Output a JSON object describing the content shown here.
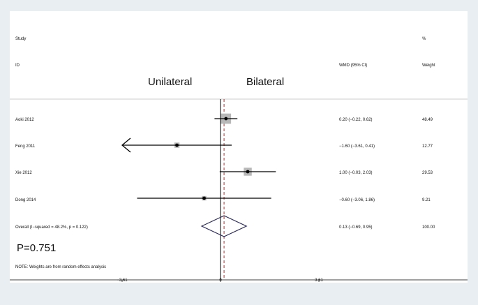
{
  "chart_data": {
    "type": "forest",
    "header": {
      "study_label": "Study",
      "id_label": "ID",
      "effect_label": "WMD (95% CI)",
      "pct_label": "%",
      "weight_label": "Weight"
    },
    "favours": {
      "left": "Unilateral",
      "right": "Bilateral"
    },
    "studies": [
      {
        "name": "Aoki 2012",
        "est": 0.2,
        "lo": -0.22,
        "hi": 0.62,
        "ci_text": "0.20 (−0.22, 0.62)",
        "weight": 48.49,
        "weight_text": "48.49"
      },
      {
        "name": "Feng 2011",
        "est": -1.6,
        "lo": -3.61,
        "hi": 0.41,
        "ci_text": "−1.60 (−3.61, 0.41)",
        "weight": 12.77,
        "weight_text": "12.77",
        "arrow_left": true
      },
      {
        "name": "Xie 2012",
        "est": 1.0,
        "lo": -0.03,
        "hi": 2.03,
        "ci_text": "1.00 (−0.03, 2.03)",
        "weight": 29.53,
        "weight_text": "29.53"
      },
      {
        "name": "Dong 2014",
        "est": -0.6,
        "lo": -3.06,
        "hi": 1.86,
        "ci_text": "−0.60 (−3.06, 1.86)",
        "weight": 9.21,
        "weight_text": "9.21"
      }
    ],
    "overall": {
      "name": "Overall  (I−squared = 48.2%, p = 0.122)",
      "est": 0.13,
      "lo": -0.69,
      "hi": 0.95,
      "ci_text": "0.13 (−0.69, 0.95)",
      "weight_text": "100.00"
    },
    "p_value_text": "P=0.751",
    "note": "NOTE: Weights are from random effects analysis",
    "x_ticks": [
      {
        "value": -3.61,
        "label": "−3.61"
      },
      {
        "value": 0,
        "label": "0"
      },
      {
        "value": 3.61,
        "label": "3.61"
      }
    ],
    "colors": {
      "line": "#000000",
      "box": "#b8b8b8",
      "diamond": "#2a2a5a",
      "reference": "#b03030"
    }
  }
}
